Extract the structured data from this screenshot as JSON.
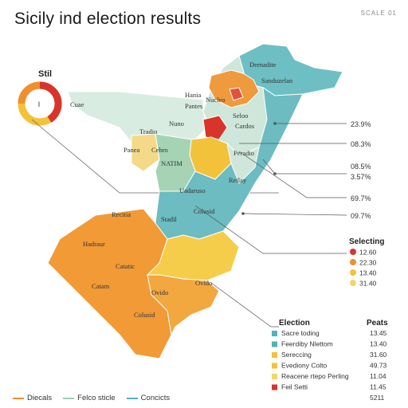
{
  "title": "Sicily ind election results",
  "corner_tag": "SCALE 01",
  "donut": {
    "label": "Stil",
    "center_mark": "I"
  },
  "regions": {
    "north_label": "Dernadite",
    "northeast_label": "Sanduzelan",
    "west_label": "Cuae",
    "hania": "Hania",
    "pantes": "Pantes",
    "nucleo": "Nucleo",
    "nuno": "Nuno",
    "seloo": "Seloo",
    "tradio": "Tradio",
    "cardos": "Cardos",
    "natim": "NATIM",
    "panea": "Panea",
    "peradio": "Peradio",
    "uadaruso": "Uadaruso",
    "recitia": "Recitia",
    "cebro": "Cebro",
    "relay": "Reilay",
    "hadraur": "Hadraur",
    "catatic": "Catatic",
    "stadil": "Stadil",
    "catam": "Catam",
    "ovido": "Ovido",
    "colusid": "Colusid"
  },
  "leaders": [
    "23.9%",
    "08.3%",
    "08.5%",
    "3.57%",
    "69.7%",
    "09.7%"
  ],
  "legend_selecting": {
    "title": "Selecting",
    "items": [
      {
        "value": "12.60",
        "color": "#d9342b"
      },
      {
        "value": "22.30",
        "color": "#ef8f2f"
      },
      {
        "value": "13.40",
        "color": "#f2c23a"
      },
      {
        "value": "31.40",
        "color": "#f4d56a"
      }
    ]
  },
  "legend_election": {
    "title": "Election",
    "col2": "Peats",
    "items": [
      {
        "label": "Sacre toding",
        "value": "13.45",
        "color": "#4fb3b9"
      },
      {
        "label": "Feerdiby Nlettom",
        "value": "13.40",
        "color": "#4fb3b9"
      },
      {
        "label": "Sereccing",
        "value": "31.60",
        "color": "#f2c23a"
      },
      {
        "label": "Evediony Colto",
        "value": "49.73",
        "color": "#f2c23a"
      },
      {
        "label": "Reacene rtepo Perling",
        "value": "11.04",
        "color": "#f4d56a"
      },
      {
        "label": "Feil Setti",
        "value": "11.45",
        "color": "#d9342b"
      }
    ],
    "footer": "5211"
  },
  "bottom_legend": [
    {
      "label": "Diecals",
      "color": "#ef8f2f"
    },
    {
      "label": "Felco sticle",
      "color": "#9dcfb7"
    },
    {
      "label": "Concicts",
      "color": "#4fb3b9"
    }
  ]
}
